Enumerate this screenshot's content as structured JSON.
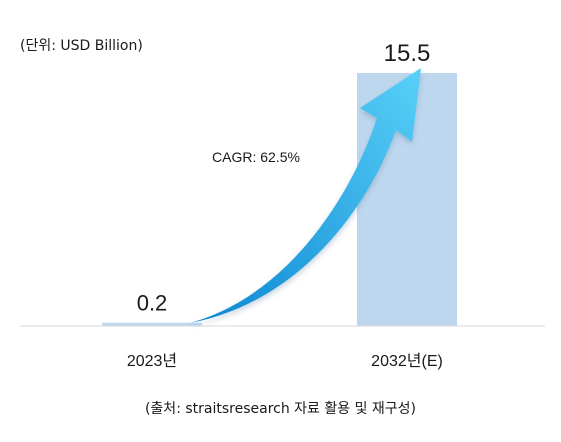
{
  "unit_label": "(단위: USD Billion)",
  "source_note": "(출처: straitsresearch 자료 활용 및 재구성)",
  "chart_data": {
    "type": "bar",
    "categories": [
      "2023년",
      "2032년(E)"
    ],
    "values": [
      0.2,
      15.5
    ],
    "data_labels": [
      "0.2",
      "15.5"
    ],
    "title": "",
    "xlabel": "",
    "ylabel": "",
    "ylim": [
      0,
      15.5
    ],
    "grid": false,
    "annotation": "CAGR: 62.5%",
    "colors": {
      "bar": "#bdd7ee",
      "axis": "#d9d9d9",
      "arrow_light": "#59d0f8",
      "arrow_dark": "#0b86d1"
    }
  }
}
